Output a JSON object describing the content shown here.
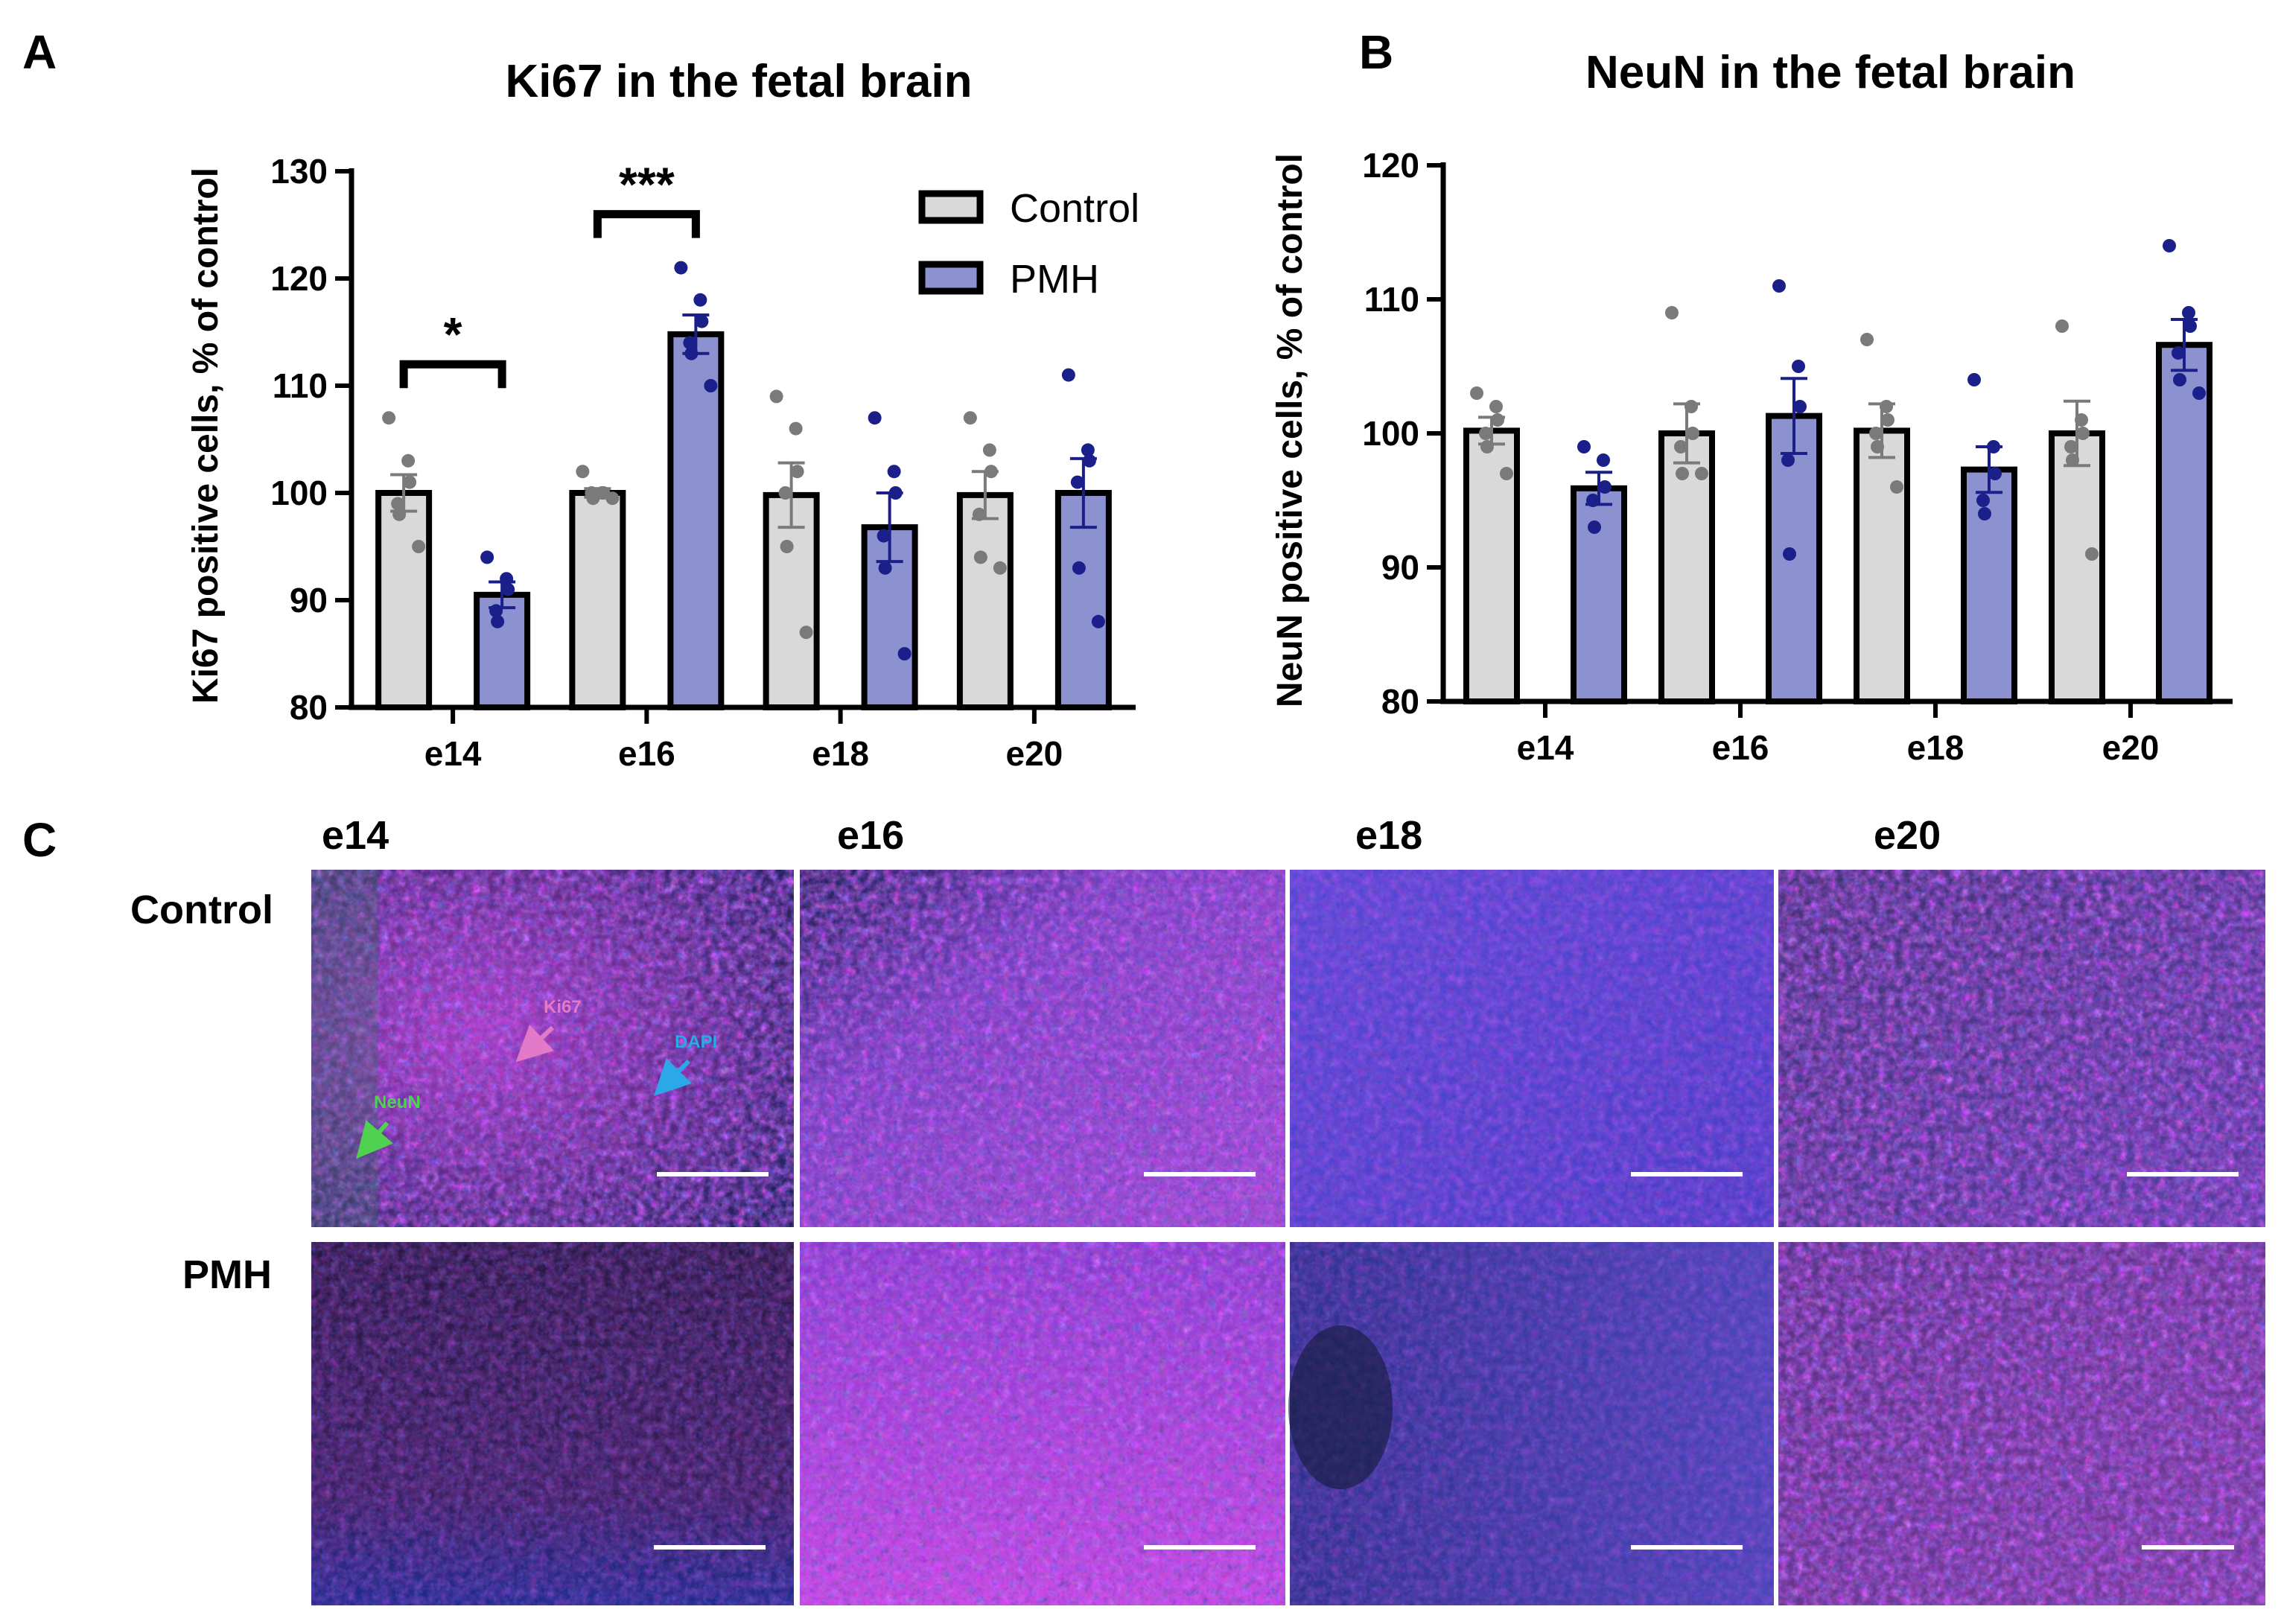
{
  "panels": {
    "a": "A",
    "b": "B",
    "c": "C"
  },
  "colors": {
    "control": "#d9d9d9",
    "pmh": "#8c92d0",
    "control_dot": "#7a7a7a",
    "pmh_dot": "#1a1f8a",
    "control_err": "#7a7a7a",
    "pmh_err": "#1a1f8a"
  },
  "chart_data": [
    {
      "id": "ki67",
      "type": "bar",
      "title": "Ki67 in the fetal brain",
      "xlabel": "",
      "ylabel": "Ki67 positive cells, % of control",
      "ylim": [
        80,
        130
      ],
      "yticks": [
        "80",
        "90",
        "100",
        "110",
        "120",
        "130"
      ],
      "categories": [
        "e14",
        "e16",
        "e18",
        "e20"
      ],
      "legend": {
        "position": "top-right",
        "entries": [
          "Control",
          "PMH"
        ]
      },
      "series": [
        {
          "name": "Control",
          "values": [
            100,
            100,
            99.8,
            99.8
          ],
          "sem": [
            1.7,
            0.4,
            3.0,
            2.2
          ],
          "points": [
            [
              107,
              103,
              101,
              99,
              98,
              95
            ],
            [
              102,
              100,
              100,
              100,
              99.5,
              99.5
            ],
            [
              109,
              106,
              102,
              100,
              95,
              87
            ],
            [
              107,
              104,
              102,
              98,
              94,
              93
            ]
          ]
        },
        {
          "name": "PMH",
          "values": [
            90.5,
            114.8,
            96.8,
            100
          ],
          "sem": [
            1.2,
            1.8,
            3.2,
            3.2
          ],
          "points": [
            [
              94,
              92,
              91,
              89,
              88
            ],
            [
              121,
              118,
              116,
              114,
              113,
              110
            ],
            [
              107,
              102,
              100,
              96,
              93,
              85
            ],
            [
              111,
              104,
              103,
              101,
              93,
              88
            ]
          ]
        }
      ],
      "significance": [
        {
          "category": "e14",
          "label": "*",
          "bracket_y": 112
        },
        {
          "category": "e16",
          "label": "***",
          "bracket_y": 126
        }
      ]
    },
    {
      "id": "neun",
      "type": "bar",
      "title": "NeuN in the fetal brain",
      "xlabel": "",
      "ylabel": "NeuN positive cells, % of control",
      "ylim": [
        80,
        120
      ],
      "yticks": [
        "80",
        "90",
        "100",
        "110",
        "120"
      ],
      "categories": [
        "e14",
        "e16",
        "e18",
        "e20"
      ],
      "series": [
        {
          "name": "Control",
          "values": [
            100.2,
            100,
            100.2,
            100
          ],
          "sem": [
            1.0,
            2.2,
            2.0,
            2.4
          ],
          "points": [
            [
              103,
              102,
              101,
              100,
              99,
              97
            ],
            [
              109,
              102,
              100,
              99,
              97,
              97
            ],
            [
              107,
              102,
              101,
              100,
              99,
              96
            ],
            [
              108,
              101,
              100,
              99,
              98,
              91
            ]
          ]
        },
        {
          "name": "PMH",
          "values": [
            95.9,
            101.3,
            97.3,
            106.6
          ],
          "sem": [
            1.2,
            2.8,
            1.7,
            1.9
          ],
          "points": [
            [
              99,
              98,
              96,
              95,
              93
            ],
            [
              111,
              105,
              102,
              98,
              91
            ],
            [
              104,
              99,
              97,
              95,
              94
            ],
            [
              114,
              109,
              108,
              106,
              104,
              103
            ]
          ]
        }
      ]
    }
  ],
  "micrographs": {
    "columns": [
      "e14",
      "e16",
      "e18",
      "e20"
    ],
    "rows": [
      "Control",
      "PMH"
    ],
    "annotations": {
      "ki67": "Ki67",
      "dapi": "DAPI",
      "neun": "NeuN"
    }
  }
}
